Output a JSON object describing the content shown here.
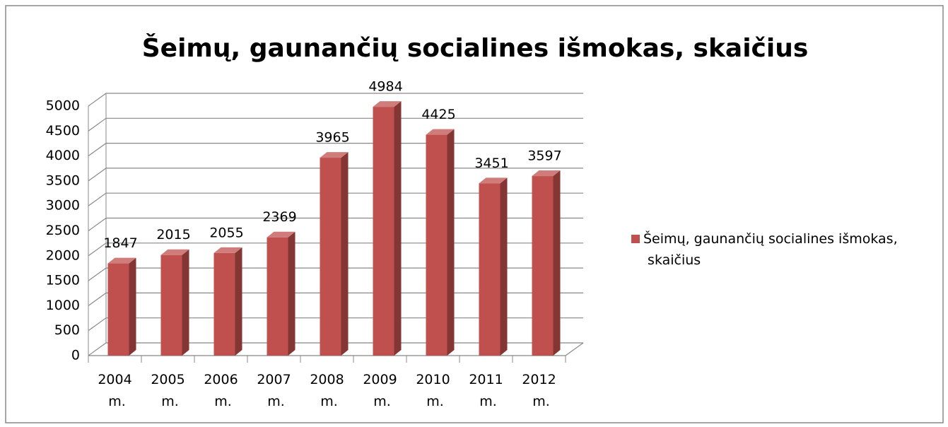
{
  "chart_data": {
    "type": "bar3d",
    "title": "Šeimų, gaunančių socialines išmokas,  skaičius",
    "categories": [
      "2004 m.",
      "2005 m.",
      "2006 m.",
      "2007 m.",
      "2008 m.",
      "2009 m.",
      "2010 m.",
      "2011 m.",
      "2012 m."
    ],
    "series": [
      {
        "name": "Šeimų, gaunančių socialines išmokas, skaičius",
        "color": "#c0504d",
        "values": [
          1847,
          2015,
          2055,
          2369,
          3965,
          4984,
          4425,
          3451,
          3597
        ]
      }
    ],
    "ylim": [
      0,
      5000
    ],
    "yticks": [
      0,
      500,
      1000,
      1500,
      2000,
      2500,
      3000,
      3500,
      4000,
      4500,
      5000
    ],
    "grid": true,
    "legend": "right"
  }
}
